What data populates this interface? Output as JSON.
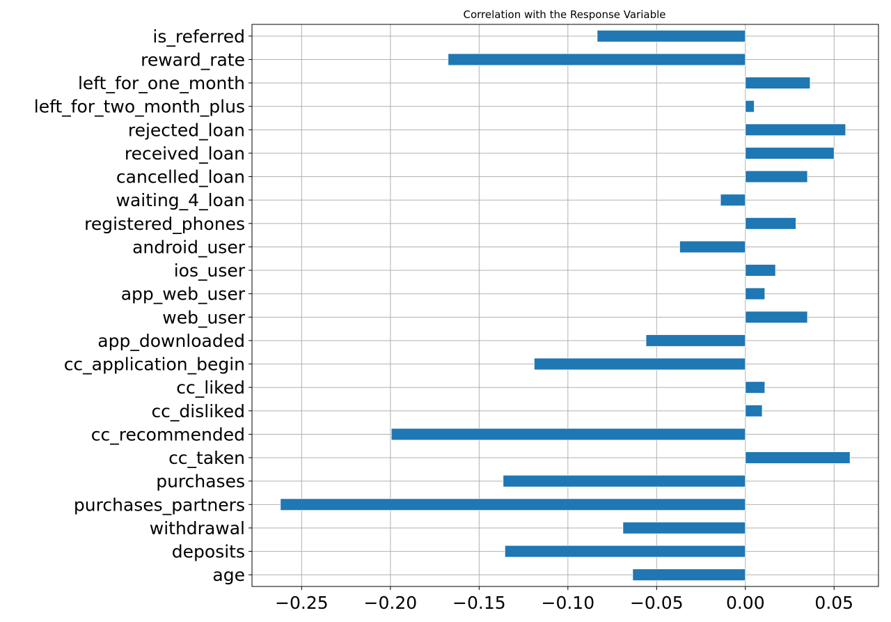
{
  "chart_data": {
    "type": "bar",
    "orientation": "horizontal",
    "title": "Correlation with the Response Variable",
    "xlabel": "",
    "ylabel": "",
    "xlim": [
      -0.278,
      0.075
    ],
    "xticks": [
      -0.25,
      -0.2,
      -0.15,
      -0.1,
      -0.05,
      0.0,
      0.05
    ],
    "xtick_labels": [
      "−0.25",
      "−0.20",
      "−0.15",
      "−0.10",
      "−0.05",
      "0.00",
      "0.05"
    ],
    "grid": true,
    "bar_color": "#1f77b4",
    "categories": [
      "age",
      "deposits",
      "withdrawal",
      "purchases_partners",
      "purchases",
      "cc_taken",
      "cc_recommended",
      "cc_disliked",
      "cc_liked",
      "cc_application_begin",
      "app_downloaded",
      "web_user",
      "app_web_user",
      "ios_user",
      "android_user",
      "registered_phones",
      "waiting_4_loan",
      "cancelled_loan",
      "received_loan",
      "rejected_loan",
      "left_for_two_month_plus",
      "left_for_one_month",
      "reward_rate",
      "is_referred"
    ],
    "values": [
      -0.0635,
      -0.1355,
      -0.069,
      -0.262,
      -0.1365,
      0.059,
      -0.1995,
      0.0095,
      0.011,
      -0.119,
      -0.056,
      0.035,
      0.011,
      0.017,
      -0.037,
      0.0285,
      -0.014,
      0.035,
      0.05,
      0.0565,
      0.005,
      0.0365,
      -0.1675,
      -0.0835
    ]
  }
}
